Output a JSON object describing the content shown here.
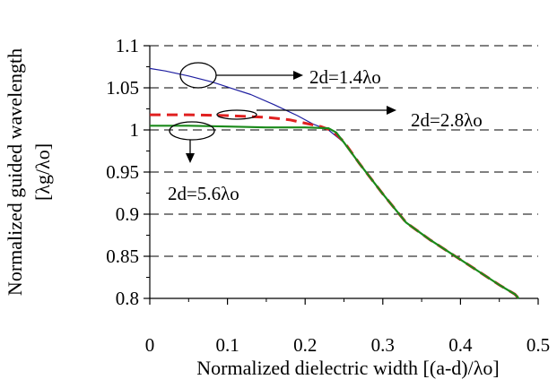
{
  "chart_data": {
    "type": "line",
    "xlabel": "Normalized dielectric width [(a-d)/λo]",
    "ylabel": "Normalized guided wavelength",
    "ylabel2": "[λg/λo]",
    "xlim": [
      0,
      0.5
    ],
    "ylim": [
      0.8,
      1.1
    ],
    "x_ticks": [
      "0",
      "0.1",
      "0.2",
      "0.3",
      "0.4",
      "0.5"
    ],
    "y_ticks": [
      "0.8",
      "0.85",
      "0.9",
      "0.95",
      "1",
      "1.05",
      "1.1"
    ],
    "grid": "horizontal-dashed",
    "series": [
      {
        "name": "2d=1.4λo",
        "color": "#1f1fa0",
        "style": "solid-thin",
        "x": [
          0,
          0.02,
          0.05,
          0.08,
          0.1,
          0.13,
          0.16,
          0.19,
          0.21,
          0.23,
          0.25,
          0.27,
          0.3,
          0.33,
          0.36,
          0.39,
          0.42,
          0.45,
          0.47,
          0.475
        ],
        "y": [
          1.073,
          1.07,
          1.064,
          1.057,
          1.051,
          1.042,
          1.03,
          1.017,
          1.007,
          1.0,
          0.985,
          0.96,
          0.924,
          0.89,
          0.87,
          0.852,
          0.834,
          0.816,
          0.805,
          0.8
        ]
      },
      {
        "name": "2d=2.8λo",
        "color": "#e02020",
        "style": "dashed-thick",
        "x": [
          0,
          0.05,
          0.1,
          0.15,
          0.18,
          0.2,
          0.22,
          0.235,
          0.25,
          0.27,
          0.3,
          0.33,
          0.36,
          0.39,
          0.42,
          0.45,
          0.47,
          0.475
        ],
        "y": [
          1.018,
          1.018,
          1.017,
          1.015,
          1.012,
          1.008,
          1.004,
          0.999,
          0.986,
          0.96,
          0.924,
          0.89,
          0.87,
          0.852,
          0.834,
          0.816,
          0.805,
          0.8
        ]
      },
      {
        "name": "2d=5.6λo",
        "color": "#1a8a1a",
        "style": "solid-thick",
        "x": [
          0,
          0.05,
          0.1,
          0.15,
          0.2,
          0.23,
          0.24,
          0.25,
          0.27,
          0.3,
          0.33,
          0.36,
          0.39,
          0.42,
          0.45,
          0.47,
          0.475
        ],
        "y": [
          1.005,
          1.005,
          1.004,
          1.003,
          1.003,
          1.002,
          0.997,
          0.985,
          0.96,
          0.924,
          0.89,
          0.87,
          0.852,
          0.834,
          0.816,
          0.805,
          0.8
        ]
      }
    ],
    "annotations": [
      {
        "text": "2d=1.4λo",
        "points_to": "2d=1.4λo"
      },
      {
        "text": "2d=2.8λo",
        "points_to": "2d=2.8λo"
      },
      {
        "text": "2d=5.6λo",
        "points_to": "2d=5.6λo"
      }
    ]
  }
}
